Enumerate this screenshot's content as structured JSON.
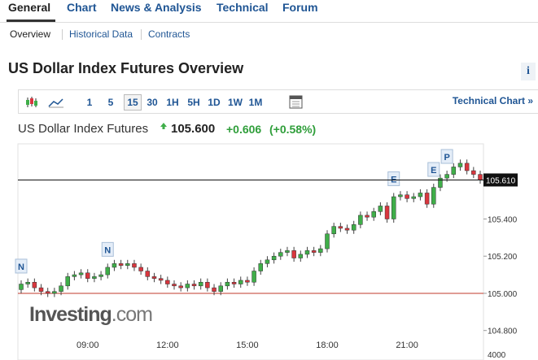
{
  "nav": {
    "tabs": [
      "General",
      "Chart",
      "News & Analysis",
      "Technical",
      "Forum"
    ],
    "subtabs": [
      "Overview",
      "Historical Data",
      "Contracts"
    ]
  },
  "header": {
    "title": "US Dollar Index Futures Overview",
    "info": "i"
  },
  "toolbar": {
    "intervals": [
      "1",
      "5",
      "15",
      "30",
      "1H",
      "5H",
      "1D",
      "1W",
      "1M"
    ],
    "active_interval": "15",
    "link": "Technical Chart »"
  },
  "quote": {
    "name": "US Dollar Index Futures",
    "price": "105.600",
    "change": "+0.606",
    "change_percent": "(+0.58%)"
  },
  "chart_data": {
    "type": "candlestick",
    "categories": [
      null,
      null,
      null,
      null,
      null,
      null,
      null,
      null,
      null,
      null,
      "09:00",
      null,
      null,
      null,
      null,
      null,
      null,
      null,
      null,
      null,
      null,
      null,
      "12:00",
      null,
      null,
      null,
      null,
      null,
      null,
      null,
      null,
      null,
      null,
      null,
      "15:00",
      null,
      null,
      null,
      null,
      null,
      null,
      null,
      null,
      null,
      null,
      null,
      "18:00",
      null,
      null,
      null,
      null,
      null,
      null,
      null,
      null,
      null,
      null,
      null,
      "21:00",
      null,
      null,
      null,
      null,
      null,
      null,
      null,
      null,
      null,
      null,
      null
    ],
    "open": [
      105.02,
      105.05,
      105.06,
      105.03,
      105.01,
      105.0,
      105.01,
      105.04,
      105.09,
      105.1,
      105.11,
      105.08,
      105.09,
      105.1,
      105.14,
      105.16,
      105.15,
      105.16,
      105.14,
      105.12,
      105.09,
      105.08,
      105.07,
      105.05,
      105.04,
      105.03,
      105.05,
      105.04,
      105.06,
      105.03,
      105.01,
      105.04,
      105.06,
      105.05,
      105.07,
      105.06,
      105.12,
      105.16,
      105.18,
      105.2,
      105.22,
      105.23,
      105.19,
      105.21,
      105.23,
      105.22,
      105.24,
      105.32,
      105.36,
      105.35,
      105.34,
      105.37,
      105.42,
      105.41,
      105.44,
      105.47,
      105.4,
      105.52,
      105.53,
      105.51,
      105.52,
      105.54,
      105.48,
      105.57,
      105.62,
      105.64,
      105.68,
      105.7,
      105.66,
      105.64
    ],
    "high": [
      105.07,
      105.08,
      105.08,
      105.05,
      105.03,
      105.03,
      105.06,
      105.11,
      105.12,
      105.13,
      105.13,
      105.11,
      105.12,
      105.16,
      105.18,
      105.18,
      105.18,
      105.18,
      105.16,
      105.14,
      105.11,
      105.1,
      105.09,
      105.07,
      105.06,
      105.07,
      105.07,
      105.08,
      105.08,
      105.05,
      105.06,
      105.08,
      105.08,
      105.09,
      105.09,
      105.14,
      105.18,
      105.2,
      105.22,
      105.24,
      105.25,
      105.25,
      105.23,
      105.25,
      105.25,
      105.26,
      105.34,
      105.38,
      105.38,
      105.37,
      105.39,
      105.44,
      105.44,
      105.46,
      105.49,
      105.49,
      105.54,
      105.55,
      105.55,
      105.54,
      105.56,
      105.56,
      105.59,
      105.64,
      105.66,
      105.7,
      105.72,
      105.72,
      105.68,
      105.66
    ],
    "low": [
      105.0,
      105.03,
      105.01,
      104.99,
      104.98,
      104.98,
      104.99,
      105.02,
      105.07,
      105.08,
      105.06,
      105.06,
      105.07,
      105.08,
      105.12,
      105.13,
      105.13,
      105.12,
      105.1,
      105.07,
      105.06,
      105.05,
      105.03,
      105.02,
      105.01,
      105.01,
      105.02,
      105.02,
      105.01,
      104.99,
      104.99,
      105.02,
      105.03,
      105.03,
      105.04,
      105.04,
      105.1,
      105.14,
      105.16,
      105.18,
      105.2,
      105.17,
      105.17,
      105.19,
      105.2,
      105.2,
      105.22,
      105.3,
      105.33,
      105.32,
      105.32,
      105.35,
      105.39,
      105.39,
      105.42,
      105.38,
      105.38,
      105.5,
      105.49,
      105.49,
      105.5,
      105.46,
      105.46,
      105.55,
      105.6,
      105.62,
      105.66,
      105.64,
      105.62,
      105.59
    ],
    "close": [
      105.05,
      105.06,
      105.03,
      105.01,
      105.0,
      105.01,
      105.04,
      105.09,
      105.1,
      105.11,
      105.08,
      105.09,
      105.1,
      105.14,
      105.16,
      105.15,
      105.16,
      105.14,
      105.12,
      105.09,
      105.08,
      105.07,
      105.05,
      105.04,
      105.03,
      105.05,
      105.04,
      105.06,
      105.03,
      105.01,
      105.04,
      105.06,
      105.05,
      105.07,
      105.06,
      105.12,
      105.16,
      105.18,
      105.2,
      105.22,
      105.23,
      105.19,
      105.21,
      105.23,
      105.22,
      105.24,
      105.32,
      105.36,
      105.35,
      105.34,
      105.37,
      105.42,
      105.41,
      105.44,
      105.47,
      105.4,
      105.52,
      105.53,
      105.51,
      105.52,
      105.54,
      105.48,
      105.57,
      105.62,
      105.64,
      105.68,
      105.7,
      105.66,
      105.64,
      105.61
    ],
    "event_labels": [
      "N",
      null,
      null,
      null,
      null,
      null,
      null,
      null,
      null,
      null,
      null,
      null,
      null,
      "N",
      null,
      null,
      null,
      null,
      null,
      null,
      null,
      null,
      null,
      null,
      null,
      null,
      null,
      null,
      null,
      null,
      null,
      null,
      null,
      null,
      null,
      null,
      null,
      null,
      null,
      null,
      null,
      null,
      null,
      null,
      null,
      null,
      null,
      null,
      null,
      null,
      null,
      null,
      null,
      null,
      null,
      null,
      "E",
      null,
      null,
      null,
      null,
      null,
      "E",
      null,
      "P",
      null,
      null,
      null,
      null,
      null
    ],
    "up_color": "#3fae49",
    "down_color": "#d9363e",
    "ylim": [
      104.72,
      105.8
    ],
    "yticks": [
      {
        "value": 104.8,
        "label": "104.800"
      },
      {
        "value": 105,
        "label": "105.000"
      },
      {
        "value": 105.2,
        "label": "105.200"
      },
      {
        "value": 105.4,
        "label": "105.400"
      }
    ],
    "last_price": {
      "value": 105.61,
      "label": "105.610"
    },
    "reference_line": 105,
    "lower_panel_tick": "4000",
    "logo": [
      "Investing",
      ".com"
    ]
  }
}
